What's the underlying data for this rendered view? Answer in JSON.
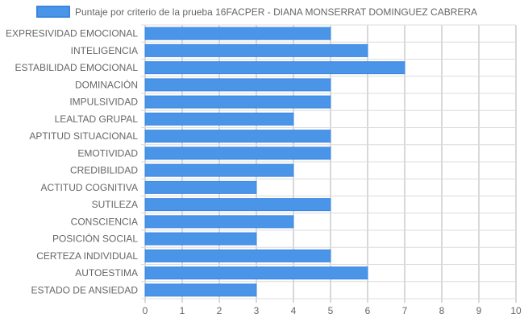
{
  "chart_data": {
    "type": "bar",
    "orientation": "horizontal",
    "categories": [
      "EXPRESIVIDAD EMOCIONAL",
      "INTELIGENCIA",
      "ESTABILIDAD EMOCIONAL",
      "DOMINACIÓN",
      "IMPULSIVIDAD",
      "LEALTAD GRUPAL",
      "APTITUD SITUACIONAL",
      "EMOTIVIDAD",
      "CREDIBILIDAD",
      "ACTITUD COGNITIVA",
      "SUTILEZA",
      "CONSCIENCIA",
      "POSICIÓN SOCIAL",
      "CERTEZA INDIVIDUAL",
      "AUTOESTIMA",
      "ESTADO DE ANSIEDAD"
    ],
    "series": [
      {
        "name": "Puntaje por criterio de la prueba 16FACPER - DIANA MONSERRAT DOMINGUEZ CABRERA",
        "values": [
          5,
          6,
          7,
          5,
          5,
          4,
          5,
          5,
          4,
          3,
          5,
          4,
          3,
          5,
          6,
          3
        ]
      }
    ],
    "xlim": [
      0,
      10
    ],
    "xticks": [
      "0",
      "1",
      "2",
      "3",
      "4",
      "5",
      "6",
      "7",
      "8",
      "9",
      "10"
    ],
    "grid": true,
    "legend_position": "top",
    "colors": {
      "bar_fill": "#4a95e8",
      "bar_border": "#3a86e0",
      "grid": "#dcdcdc",
      "grid_strong": "#b0b0b0",
      "text": "#666666"
    }
  }
}
